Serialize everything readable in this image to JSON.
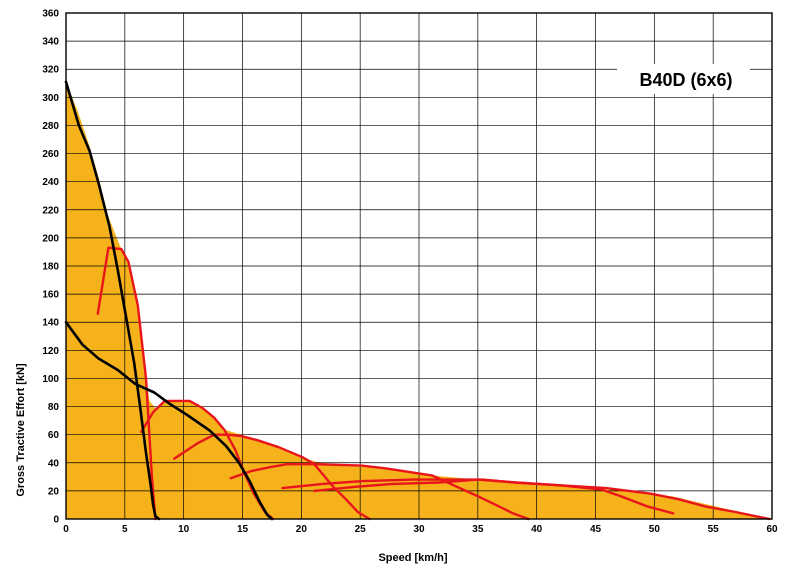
{
  "chart_data": {
    "type": "line",
    "label": "B40D (6x6)",
    "xlabel": "Speed [km/h]",
    "ylabel": "Gross Tractive Effort [kN]",
    "xlim": [
      0,
      60
    ],
    "ylim": [
      0,
      360
    ],
    "x_ticks": [
      "0",
      "5",
      "10",
      "15",
      "20",
      "25",
      "30",
      "35",
      "40",
      "45",
      "50",
      "55",
      "60"
    ],
    "y_ticks": [
      "0",
      "20",
      "40",
      "60",
      "80",
      "100",
      "120",
      "140",
      "160",
      "180",
      "200",
      "220",
      "240",
      "260",
      "280",
      "300",
      "320",
      "340",
      "360"
    ],
    "grid": true,
    "colors": {
      "envelope_fill": "#F5B21B",
      "gear_curve": "#E8151B",
      "resistance_curve": "#000000",
      "grid": "#000000"
    },
    "envelope": {
      "x": [
        0,
        1,
        2,
        2.7,
        3.6,
        4.7,
        5.3,
        6.1,
        6.8,
        7.1,
        7.6,
        8.4,
        9.4,
        10.5,
        11.6,
        12.6,
        13.3,
        14.9,
        16.3,
        17.1,
        18.8,
        21.1,
        23.4,
        27.2,
        31.1,
        34.9,
        38.2,
        42,
        46,
        49.7,
        51.6,
        59.8,
        0
      ],
      "y": [
        311,
        290,
        265,
        245,
        215,
        192,
        183,
        152,
        100,
        84,
        79,
        84,
        84,
        84,
        79,
        72,
        64,
        60,
        56,
        53,
        48,
        41,
        38,
        36,
        31,
        28,
        26,
        24,
        21,
        18,
        16,
        0,
        0
      ]
    },
    "series": [
      {
        "x": [
          2.7,
          3.6,
          4.7,
          5.3,
          6.1,
          6.8,
          7.3,
          7.6
        ],
        "y": [
          146,
          193,
          192,
          183,
          152,
          100,
          30,
          0
        ]
      },
      {
        "x": [
          6.4,
          7.4,
          8.4,
          9.4,
          10.5,
          11.6,
          12.6,
          13.5,
          14.4,
          15.1,
          15.9,
          16.9,
          17.6
        ],
        "y": [
          62,
          76,
          84,
          84,
          84,
          79,
          72,
          63,
          49,
          34,
          19,
          5,
          0
        ]
      },
      {
        "x": [
          9.2,
          11.2,
          12.6,
          13.8,
          14.9,
          16.3,
          18.1,
          20.1,
          21.1,
          21.9,
          22.7,
          23.8,
          24.8,
          25.8
        ],
        "y": [
          43,
          54,
          60,
          60,
          59,
          56,
          51,
          44,
          39,
          31,
          23,
          14,
          5,
          0
        ]
      },
      {
        "x": [
          14,
          15.7,
          17.4,
          18.8,
          21.2,
          25.1,
          27.2,
          29.5,
          31.1,
          33.2,
          35.3,
          36.8,
          38,
          39.3
        ],
        "y": [
          29,
          34,
          37,
          39,
          39,
          38,
          36,
          33,
          31,
          23,
          15,
          9,
          4,
          0
        ]
      },
      {
        "x": [
          18.4,
          21.8,
          25.2,
          29.5,
          32.6,
          35.4,
          38.2,
          42,
          45.5,
          47.2,
          49.4,
          51.6
        ],
        "y": [
          22,
          25,
          27,
          28,
          28,
          28,
          26,
          24,
          21,
          16,
          9,
          4
        ]
      },
      {
        "x": [
          21.1,
          24.7,
          27.8,
          31.7,
          35,
          38.2,
          42,
          45.9,
          49.7,
          52.1,
          54.3,
          56.9,
          58.6,
          59.8
        ],
        "y": [
          20,
          23,
          25,
          26,
          28,
          26,
          24,
          22,
          18,
          14,
          9,
          5,
          2,
          0
        ]
      }
    ],
    "black_series": [
      {
        "x": [
          0,
          1.1,
          2,
          2.8,
          3.7,
          4.4,
          5.1,
          5.8,
          6.3,
          6.8,
          7.2,
          7.4,
          7.6,
          7.9
        ],
        "y": [
          311,
          280,
          262,
          238,
          208,
          177,
          144,
          111,
          80,
          47,
          24,
          10,
          2,
          0
        ]
      },
      {
        "x": [
          0,
          1.4,
          2.8,
          4.4,
          5.9,
          7.5,
          8.8,
          10.3,
          12.2,
          13.6,
          14.7,
          15.6,
          16.4,
          17.1,
          17.5
        ],
        "y": [
          140,
          124,
          114,
          106,
          96,
          90,
          82,
          74,
          63,
          52,
          40,
          27,
          13,
          3,
          0
        ]
      }
    ]
  }
}
